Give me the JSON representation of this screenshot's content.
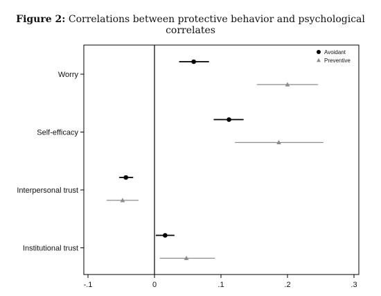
{
  "figure_label": "Figure 2:",
  "figure_title": "Correlations between protective behavior and psychological correlates",
  "chart_data": {
    "type": "scatter",
    "subtype": "coefficient-plot-with-confidence-intervals",
    "title": "Correlations between protective behavior and psychological correlates",
    "xlabel": "",
    "ylabel": "",
    "xlim": [
      -0.1,
      0.3
    ],
    "x_ticks": [
      -0.1,
      0,
      0.1,
      0.2,
      0.3
    ],
    "x_tick_labels": [
      "-.1",
      "0",
      ".1",
      ".2",
      ".3"
    ],
    "reference_line_x": 0,
    "grid": false,
    "legend_placement": "top-right",
    "categories": [
      "Worry",
      "Self-efficacy",
      "Interpersonal trust",
      "Institutional trust"
    ],
    "series": [
      {
        "name": "Avoidant",
        "marker": "circle",
        "color": "#000000",
        "values": [
          0.059,
          0.112,
          -0.043,
          0.016
        ],
        "ci_low": [
          0.037,
          0.089,
          -0.053,
          0.002
        ],
        "ci_high": [
          0.082,
          0.134,
          -0.032,
          0.03
        ]
      },
      {
        "name": "Preventive",
        "marker": "triangle",
        "color": "#8c8c8c",
        "values": [
          0.2,
          0.187,
          -0.048,
          0.048
        ],
        "ci_low": [
          0.154,
          0.121,
          -0.072,
          0.008
        ],
        "ci_high": [
          0.246,
          0.254,
          -0.024,
          0.091
        ]
      }
    ]
  }
}
